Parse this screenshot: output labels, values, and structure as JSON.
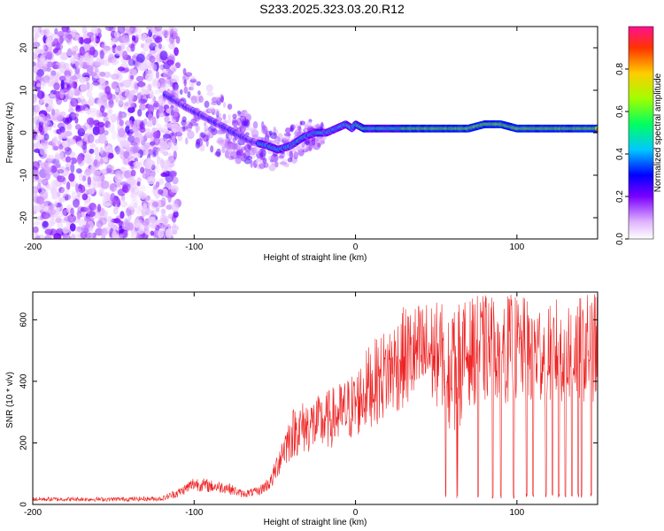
{
  "title": "S233.2025.323.03.20.R12",
  "chart_data": [
    {
      "type": "heatmap",
      "xlabel": "Height of straight line (km)",
      "ylabel": "Frequency (Hz)",
      "xlim": [
        -200,
        150
      ],
      "ylim": [
        -25,
        25
      ],
      "xticks": [
        -200,
        -100,
        0,
        100
      ],
      "xtick_labels": [
        "-200",
        "-100",
        "0",
        "100"
      ],
      "yticks": [
        -20,
        -10,
        0,
        10,
        20
      ],
      "ytick_labels": [
        "-20",
        "-10",
        "0",
        "10",
        "20"
      ],
      "ridge": {
        "x": [
          -118,
          -105,
          -95,
          -85,
          -75,
          -65,
          -55,
          -48,
          -40,
          -32,
          -25,
          -18,
          -12,
          -6,
          -2,
          0,
          5,
          10,
          20,
          30,
          50,
          70,
          80,
          90,
          100,
          110,
          130,
          150
        ],
        "freq": [
          9,
          6,
          4,
          2,
          0,
          -2,
          -3,
          -4,
          -3,
          -1,
          0,
          0,
          1,
          2,
          1,
          2,
          1,
          1,
          1,
          1,
          1,
          1,
          2,
          2,
          1,
          1,
          1,
          1
        ]
      },
      "colorbar": {
        "label": "Normalized spectral amplitude",
        "range": [
          0,
          1
        ],
        "ticks": [
          0.0,
          0.2,
          0.4,
          0.6,
          0.8
        ],
        "tick_labels": [
          "0.0",
          "0.2",
          "0.4",
          "0.6",
          "0.8"
        ]
      }
    },
    {
      "type": "line",
      "xlabel": "Height of straight line (km)",
      "ylabel": "SNR (10 * v/v)",
      "xlim": [
        -200,
        150
      ],
      "ylim": [
        0,
        690
      ],
      "xticks": [
        -200,
        -100,
        0,
        100
      ],
      "xtick_labels": [
        "-200",
        "-100",
        "0",
        "100"
      ],
      "yticks": [
        0,
        200,
        400,
        600
      ],
      "ytick_labels": [
        "0",
        "200",
        "400",
        "600"
      ],
      "series": [
        {
          "name": "SNR",
          "color": "#ee2222",
          "envelope_x": [
            -200,
            -150,
            -120,
            -108,
            -100,
            -90,
            -80,
            -70,
            -60,
            -52,
            -45,
            -38,
            -30,
            -22,
            -15,
            -8,
            0,
            8,
            15,
            22,
            30,
            45,
            60,
            75,
            90,
            110,
            130,
            150
          ],
          "envelope_y": [
            20,
            20,
            22,
            50,
            80,
            70,
            65,
            40,
            50,
            90,
            210,
            280,
            300,
            310,
            330,
            350,
            380,
            450,
            480,
            520,
            560,
            580,
            560,
            590,
            600,
            580,
            590,
            600
          ]
        }
      ],
      "dropouts_x": [
        56,
        63,
        76,
        85,
        90,
        98,
        106,
        110,
        118,
        122,
        126,
        130,
        134,
        138,
        140,
        146
      ]
    }
  ]
}
